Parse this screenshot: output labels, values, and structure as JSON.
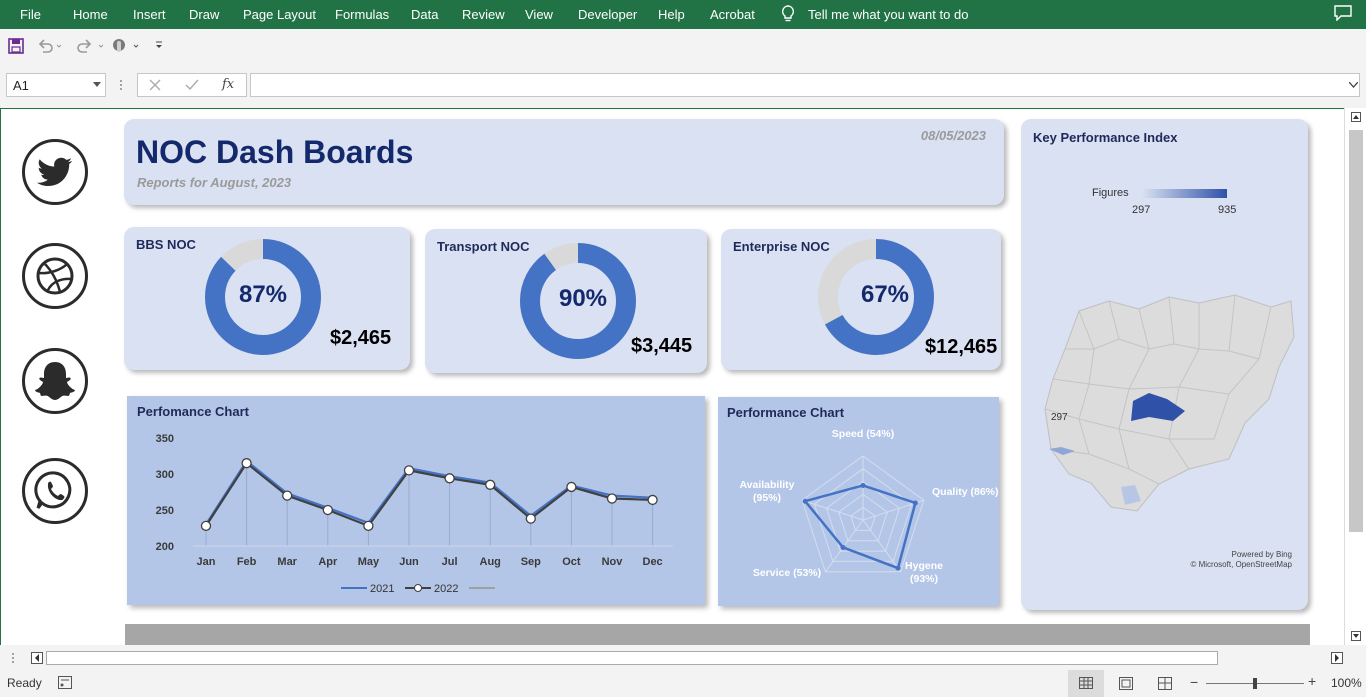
{
  "ribbon": {
    "tabs": [
      "File",
      "Home",
      "Insert",
      "Draw",
      "Page Layout",
      "Formulas",
      "Data",
      "Review",
      "View",
      "Developer",
      "Help",
      "Acrobat"
    ],
    "tell_me": "Tell me what you want to do"
  },
  "formula_bar": {
    "name_box": "A1",
    "fx_label": "fx",
    "formula": ""
  },
  "header": {
    "title": "NOC Dash Boards",
    "subtitle": "Reports for August, 2023",
    "date": "08/05/2023"
  },
  "kpis": [
    {
      "title": "BBS NOC",
      "percent_label": "87%",
      "percent": 87,
      "amount": "$2,465"
    },
    {
      "title": "Transport NOC",
      "percent_label": "90%",
      "percent": 90,
      "amount": "$3,445"
    },
    {
      "title": "Enterprise NOC",
      "percent_label": "67%",
      "percent": 67,
      "amount": "$12,465"
    }
  ],
  "social_icons": [
    "twitter-icon",
    "dribbble-icon",
    "snapchat-icon",
    "whatsapp-icon"
  ],
  "line_chart": {
    "title": "Perfomance Chart",
    "legend": [
      "2021",
      "2022"
    ],
    "colors": {
      "s2021": "#4472c4",
      "s2022": "#404040"
    }
  },
  "radar_chart": {
    "title": "Performance Chart",
    "axes": [
      {
        "label": "Speed (54%)",
        "value": 54
      },
      {
        "label": "Quality (86%)",
        "value": 86
      },
      {
        "label": "Hygene (93%)",
        "value": 93
      },
      {
        "label": "Service (53%)",
        "value": 53
      },
      {
        "label": "Availability (95%)",
        "value": 95
      }
    ]
  },
  "map": {
    "title": "Key Performance Index",
    "legend_title": "Figures",
    "legend_min": "297",
    "legend_max": "935",
    "region_label": "297",
    "credit_1": "Powered by Bing",
    "credit_2": "© Microsoft, OpenStreetMap"
  },
  "status": {
    "ready": "Ready",
    "zoom": "100%"
  },
  "chart_data": {
    "type": "line",
    "title": "Perfomance Chart",
    "categories": [
      "Jan",
      "Feb",
      "Mar",
      "Apr",
      "May",
      "Jun",
      "Jul",
      "Aug",
      "Sep",
      "Oct",
      "Nov",
      "Dec"
    ],
    "series": [
      {
        "name": "2021",
        "values": [
          230,
          318,
          273,
          253,
          232,
          308,
          297,
          288,
          242,
          284,
          270,
          267
        ]
      },
      {
        "name": "2022",
        "values": [
          228,
          315,
          270,
          250,
          228,
          305,
          294,
          285,
          238,
          282,
          266,
          264
        ]
      }
    ],
    "yticks": [
      200,
      250,
      300,
      350
    ],
    "ylim": [
      200,
      350
    ],
    "grid": false,
    "legend_position": "bottom"
  }
}
